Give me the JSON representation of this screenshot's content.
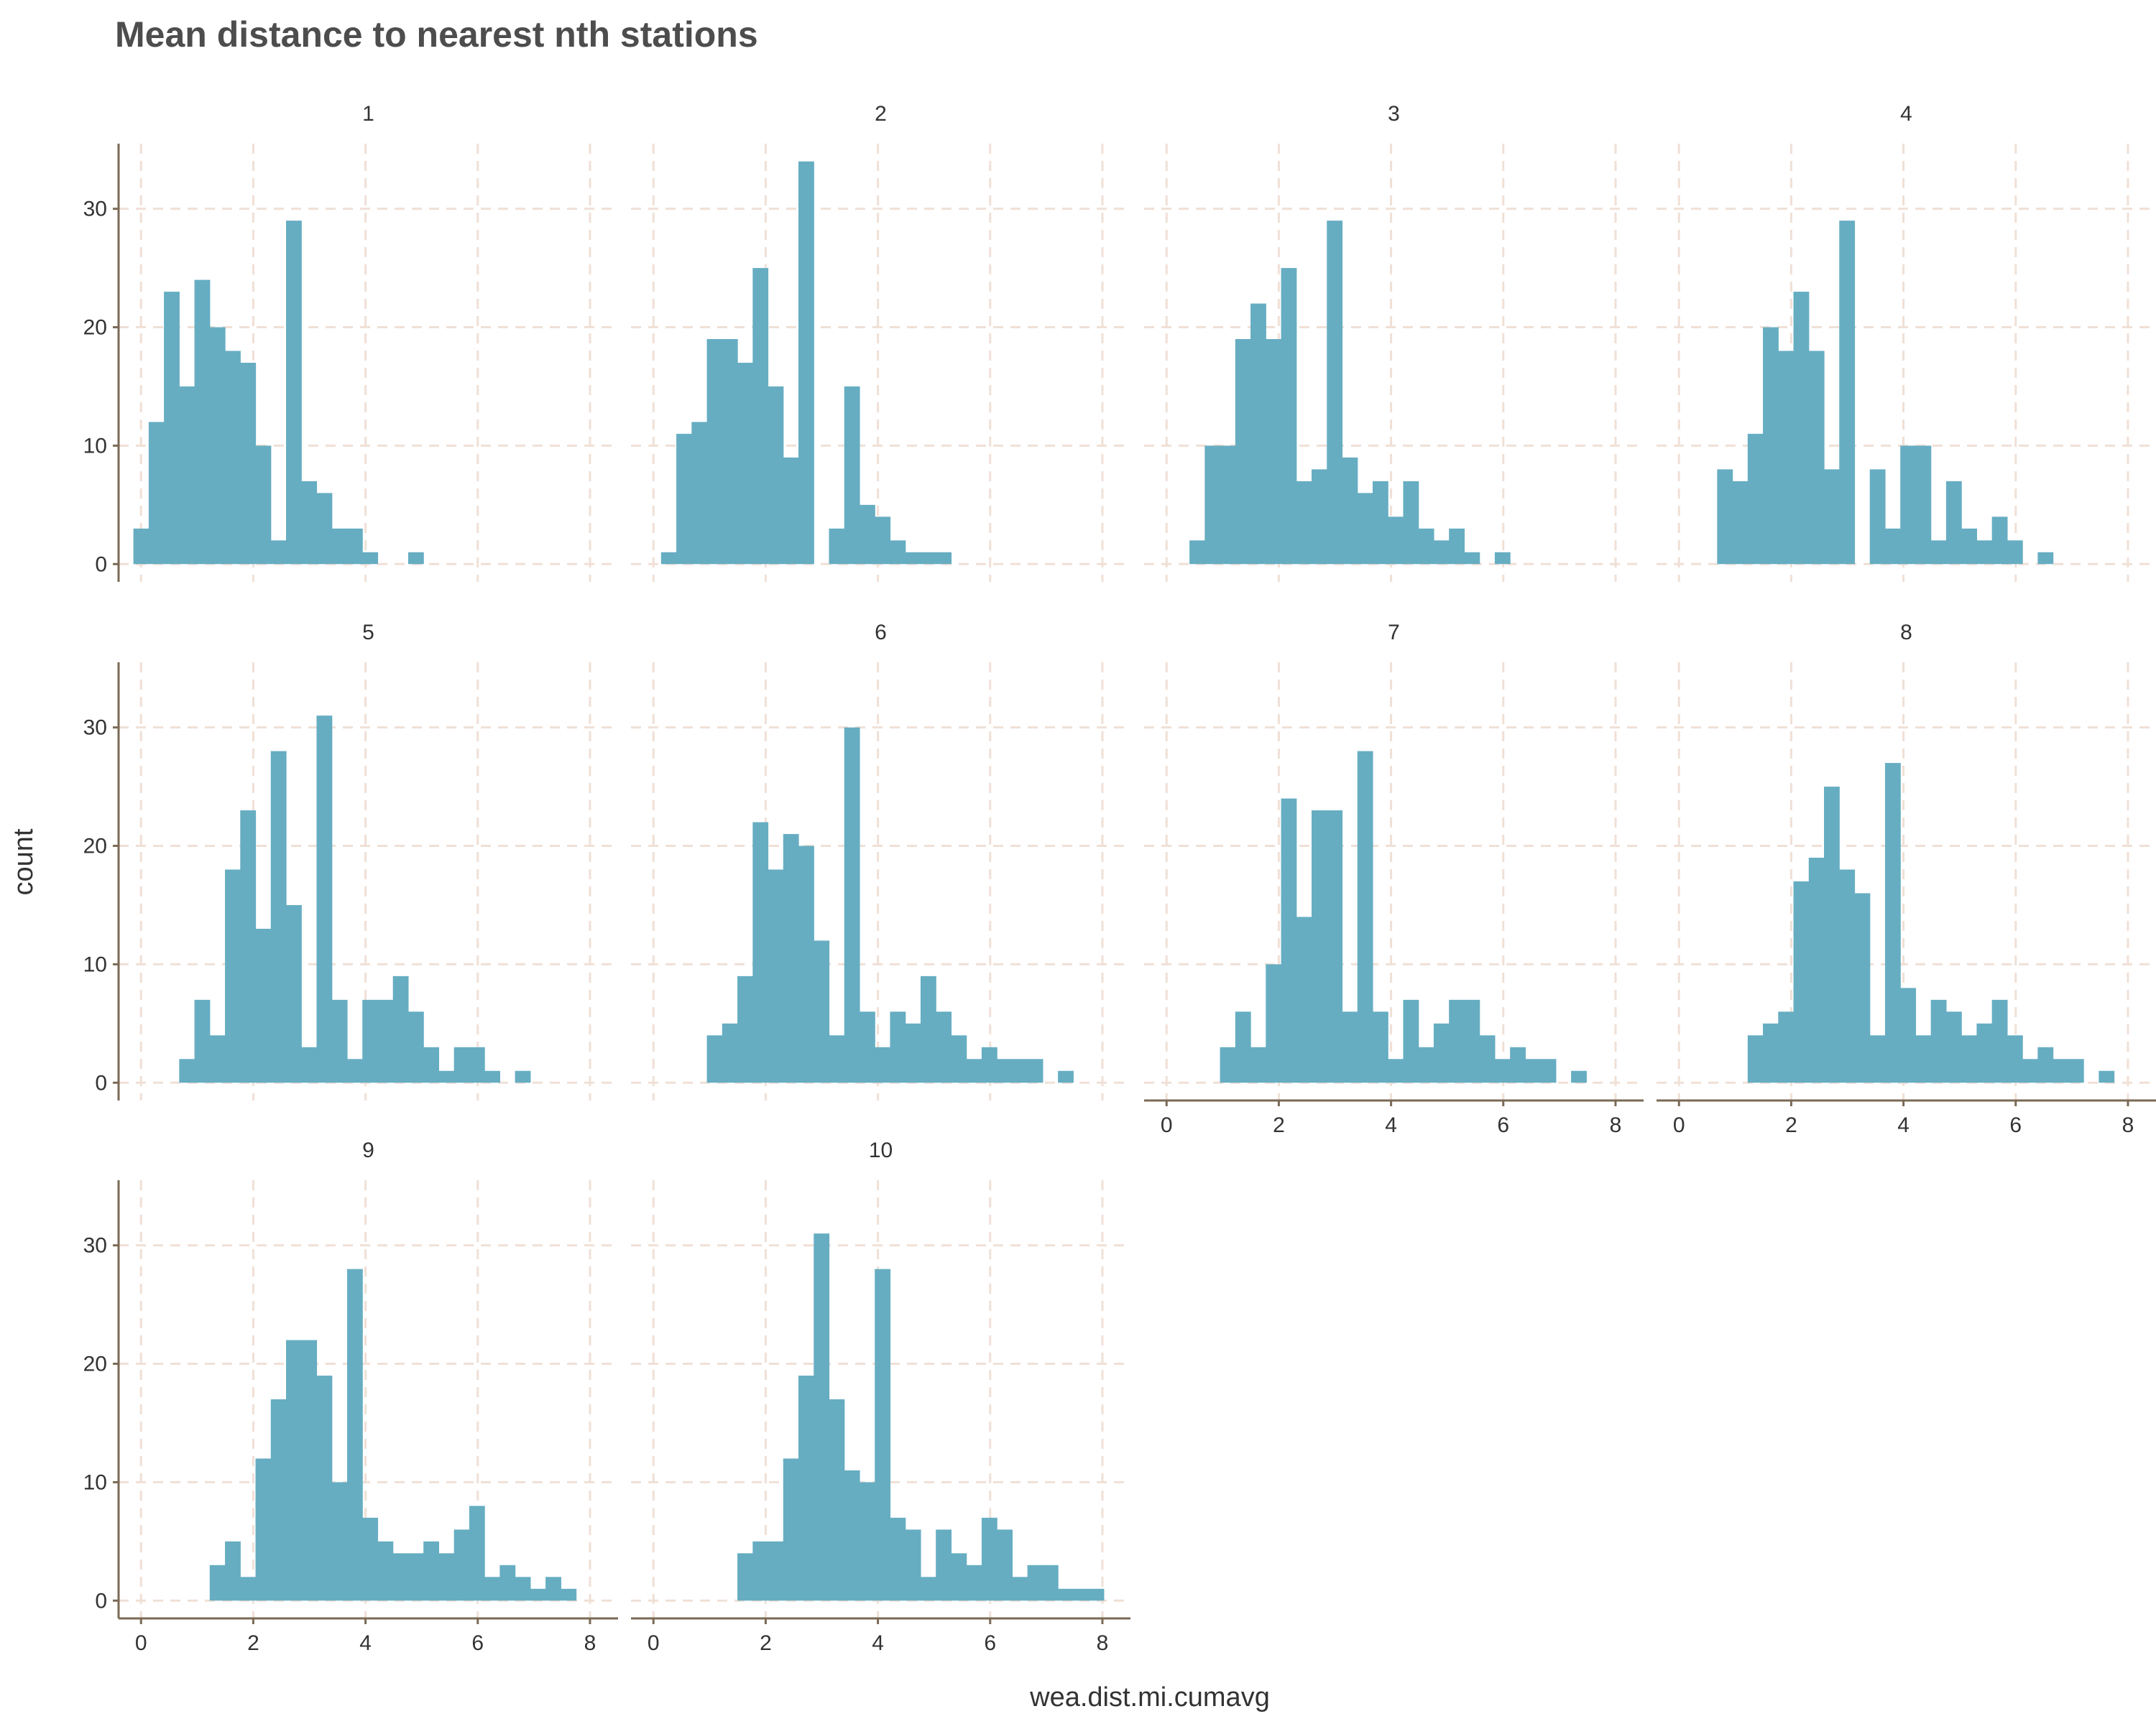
{
  "chart_data": {
    "type": "bar",
    "title": "Mean distance to nearest nth stations",
    "xlabel": "wea.dist.mi.cumavg",
    "ylabel": "count",
    "xlim": [
      -0.4,
      8.5
    ],
    "ylim": [
      -1.5,
      35.5
    ],
    "x_ticks": [
      0,
      2,
      4,
      6,
      8
    ],
    "y_ticks": [
      0,
      10,
      20,
      30
    ],
    "bin_width": 0.272,
    "grid": true,
    "panels": [
      {
        "label": "1",
        "start": -0.136,
        "counts": [
          3,
          12,
          23,
          15,
          24,
          20,
          18,
          17,
          10,
          2,
          29,
          7,
          6,
          3,
          3,
          1,
          0,
          0,
          1
        ]
      },
      {
        "label": "2",
        "start": 0.136,
        "counts": [
          1,
          11,
          12,
          19,
          19,
          17,
          25,
          15,
          9,
          34,
          0,
          3,
          15,
          5,
          4,
          2,
          1,
          1,
          1
        ]
      },
      {
        "label": "3",
        "start": 0.408,
        "counts": [
          2,
          10,
          10,
          19,
          22,
          19,
          25,
          7,
          8,
          29,
          9,
          6,
          7,
          4,
          7,
          3,
          2,
          3,
          1,
          0,
          1
        ]
      },
      {
        "label": "4",
        "start": 0.68,
        "counts": [
          8,
          7,
          11,
          20,
          18,
          23,
          18,
          8,
          29,
          0,
          8,
          3,
          10,
          10,
          2,
          7,
          3,
          2,
          4,
          2,
          0,
          1
        ]
      },
      {
        "label": "5",
        "start": 0.68,
        "counts": [
          2,
          7,
          4,
          18,
          23,
          13,
          28,
          15,
          3,
          31,
          7,
          2,
          7,
          7,
          9,
          6,
          3,
          1,
          3,
          3,
          1,
          0,
          1
        ]
      },
      {
        "label": "6",
        "start": 0.952,
        "counts": [
          4,
          5,
          9,
          22,
          18,
          21,
          20,
          12,
          4,
          30,
          6,
          3,
          6,
          5,
          9,
          6,
          4,
          2,
          3,
          2,
          2,
          2,
          0,
          1
        ]
      },
      {
        "label": "7",
        "start": 0.952,
        "counts": [
          3,
          6,
          3,
          10,
          24,
          14,
          23,
          23,
          6,
          28,
          6,
          2,
          7,
          3,
          5,
          7,
          7,
          4,
          2,
          3,
          2,
          2,
          0,
          1
        ]
      },
      {
        "label": "8",
        "start": 1.224,
        "counts": [
          4,
          5,
          6,
          17,
          19,
          25,
          18,
          16,
          4,
          27,
          8,
          4,
          7,
          6,
          4,
          5,
          7,
          4,
          2,
          3,
          2,
          2,
          0,
          1
        ]
      },
      {
        "label": "9",
        "start": 1.224,
        "counts": [
          3,
          5,
          2,
          12,
          17,
          22,
          22,
          19,
          10,
          28,
          7,
          5,
          4,
          4,
          5,
          4,
          6,
          8,
          2,
          3,
          2,
          1,
          2,
          1
        ]
      },
      {
        "label": "10",
        "start": 1.496,
        "counts": [
          4,
          5,
          5,
          12,
          19,
          31,
          17,
          11,
          10,
          28,
          7,
          6,
          2,
          6,
          4,
          3,
          7,
          6,
          2,
          3,
          3,
          1,
          1,
          1
        ]
      }
    ]
  }
}
